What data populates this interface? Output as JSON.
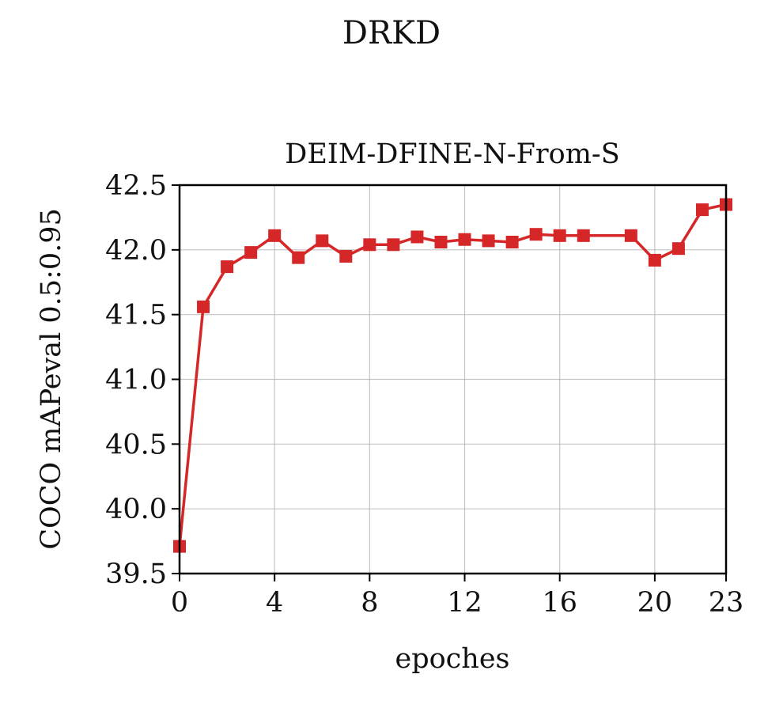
{
  "figure": {
    "suptitle": "DRKD"
  },
  "chart_data": {
    "type": "line",
    "title": "DEIM-DFINE-N-From-S",
    "xlabel": "epoches",
    "ylabel": "COCO mAPeval 0.5:0.95",
    "xlim": [
      0,
      23
    ],
    "ylim": [
      39.5,
      42.5
    ],
    "xticks": [
      0,
      4,
      8,
      12,
      16,
      20,
      23
    ],
    "yticks": [
      39.5,
      40.0,
      40.5,
      41.0,
      41.5,
      42.0,
      42.5
    ],
    "ytick_labels": [
      "39.5",
      "40.0",
      "40.5",
      "41.0",
      "41.5",
      "42.0",
      "42.5"
    ],
    "grid": true,
    "series": [
      {
        "color": "#d62728",
        "marker": "square",
        "x": [
          0,
          1,
          2,
          3,
          4,
          5,
          6,
          7,
          8,
          9,
          10,
          11,
          12,
          13,
          14,
          15,
          16,
          17,
          19,
          20,
          21,
          22,
          23
        ],
        "y": [
          39.71,
          41.56,
          41.87,
          41.98,
          42.11,
          41.94,
          42.07,
          41.95,
          42.04,
          42.04,
          42.1,
          42.06,
          42.08,
          42.07,
          42.06,
          42.12,
          42.11,
          42.11,
          42.11,
          41.92,
          42.01,
          42.31,
          42.35
        ]
      }
    ]
  }
}
